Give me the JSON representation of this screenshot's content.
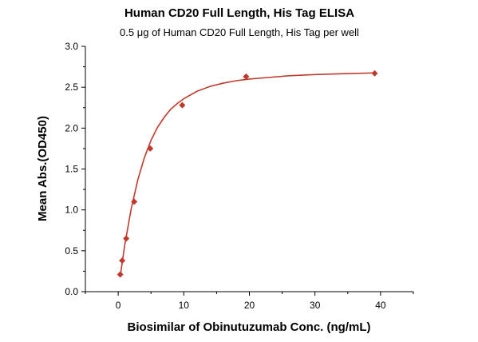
{
  "chart_data": {
    "type": "scatter",
    "title": "Human CD20 Full Length, His Tag ELISA",
    "subtitle": "0.5 μg of Human CD20 Full Length, His Tag per well",
    "xlabel": "Biosimilar of Obinutuzumab Conc. (ng/mL)",
    "ylabel": "Mean Abs.(OD450)",
    "xlim": [
      -5,
      45
    ],
    "ylim": [
      0,
      3.0
    ],
    "x_ticks": [
      0,
      10,
      20,
      30,
      40
    ],
    "x_tick_labels": [
      "0",
      "10",
      "20",
      "30",
      "40"
    ],
    "y_ticks": [
      0,
      0.5,
      1.0,
      1.5,
      2.0,
      2.5,
      3.0
    ],
    "y_tick_labels": [
      "0.0",
      "0.5",
      "1.0",
      "1.5",
      "2.0",
      "2.5",
      "3.0"
    ],
    "grid": false,
    "legend": "none",
    "color": "#c0392b",
    "marker": "diamond",
    "series": [
      {
        "x": [
          0.31,
          0.61,
          1.22,
          2.44,
          4.88,
          9.77,
          19.5,
          39.1
        ],
        "y": [
          0.21,
          0.38,
          0.65,
          1.1,
          1.75,
          2.28,
          2.63,
          2.67
        ]
      }
    ],
    "fit_curve": {
      "type": "four-parameter-logistic",
      "x": [
        0.3,
        1,
        2,
        3,
        4,
        5,
        6,
        7,
        8,
        9,
        10,
        12,
        14,
        16,
        18,
        20,
        23,
        26,
        30,
        34,
        39
      ],
      "y": [
        0.18,
        0.57,
        1.02,
        1.37,
        1.64,
        1.85,
        2.01,
        2.13,
        2.23,
        2.3,
        2.36,
        2.45,
        2.51,
        2.55,
        2.58,
        2.6,
        2.62,
        2.64,
        2.655,
        2.665,
        2.675
      ]
    }
  }
}
